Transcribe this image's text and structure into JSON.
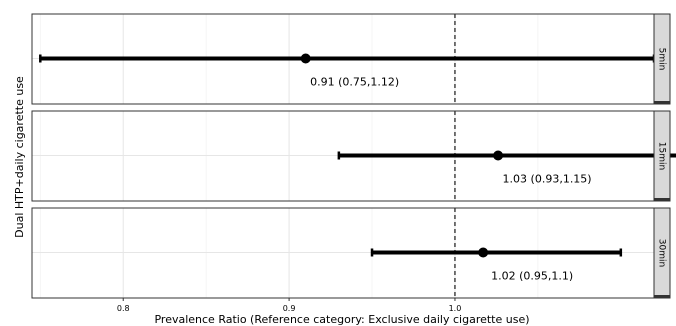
{
  "chart_data": {
    "type": "forest",
    "xlabel": "Prevalence Ratio (Reference category: Exclusive daily cigarette use)",
    "ylabel": "Dual HTP+daily cigarette use",
    "xlim": [
      0.745,
      1.12
    ],
    "x_ticks": [
      0.8,
      0.9,
      1.0
    ],
    "x_tick_labels": [
      "0.8",
      "0.9",
      "1.0"
    ],
    "reference_line": 1.0,
    "grid": true,
    "panels": [
      {
        "strip_label": "5min",
        "estimate": 0.91,
        "lower": 0.75,
        "upper": 1.12,
        "annotation": "0.91 (0.75,1.12)"
      },
      {
        "strip_label": "15min",
        "estimate": 1.026,
        "lower": 0.93,
        "upper": 1.15,
        "annotation": "1.03 (0.93,1.15)"
      },
      {
        "strip_label": "30min",
        "estimate": 1.017,
        "lower": 0.95,
        "upper": 1.1,
        "annotation": "1.02 (0.95,1.1)"
      }
    ]
  }
}
